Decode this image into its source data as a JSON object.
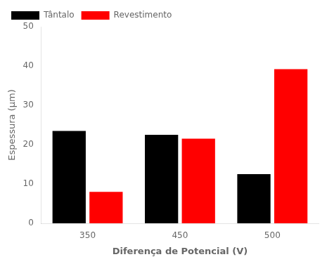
{
  "chart_data": {
    "type": "bar",
    "categories": [
      "350",
      "450",
      "500"
    ],
    "series": [
      {
        "name": "Tântalo",
        "color": "#000000",
        "values": [
          23.5,
          22.5,
          12.5
        ]
      },
      {
        "name": "Revestimento",
        "color": "#ff0000",
        "values": [
          8.0,
          21.5,
          39.2
        ]
      }
    ],
    "xlabel": "Diferença de Potencial (V)",
    "ylabel": "Espessura (μm)",
    "ylim": [
      0,
      50
    ],
    "yticks": [
      0,
      10,
      20,
      30,
      40,
      50
    ],
    "grid": false,
    "legend": "upper left"
  }
}
